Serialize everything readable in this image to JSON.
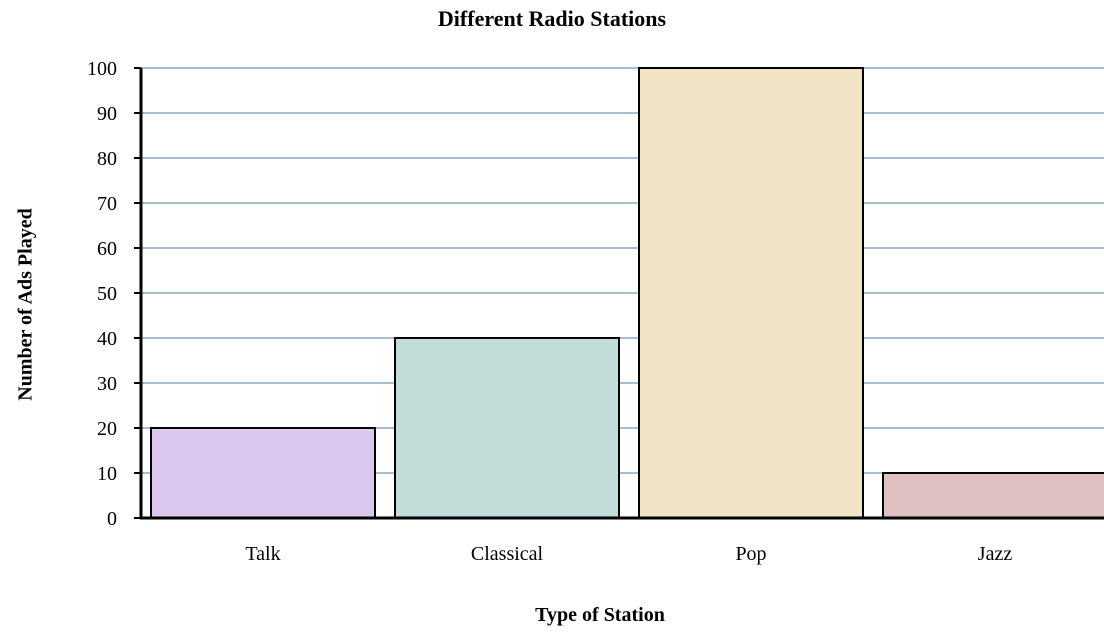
{
  "chart_data": {
    "type": "bar",
    "title": "Different Radio Stations",
    "xlabel": "Type of Station",
    "ylabel": "Number of Ads Played",
    "categories": [
      "Talk",
      "Classical",
      "Pop",
      "Jazz"
    ],
    "values": [
      20,
      40,
      100,
      10
    ],
    "colors": [
      "#dcc8ef",
      "#c2ddd9",
      "#f1e4c4",
      "#dfc0c0"
    ],
    "gridline_color": "#8ca8c0",
    "ylim": [
      0,
      100
    ],
    "yticks": [
      0,
      10,
      20,
      30,
      40,
      50,
      60,
      70,
      80,
      90,
      100
    ],
    "grid": true,
    "legend": "none"
  }
}
